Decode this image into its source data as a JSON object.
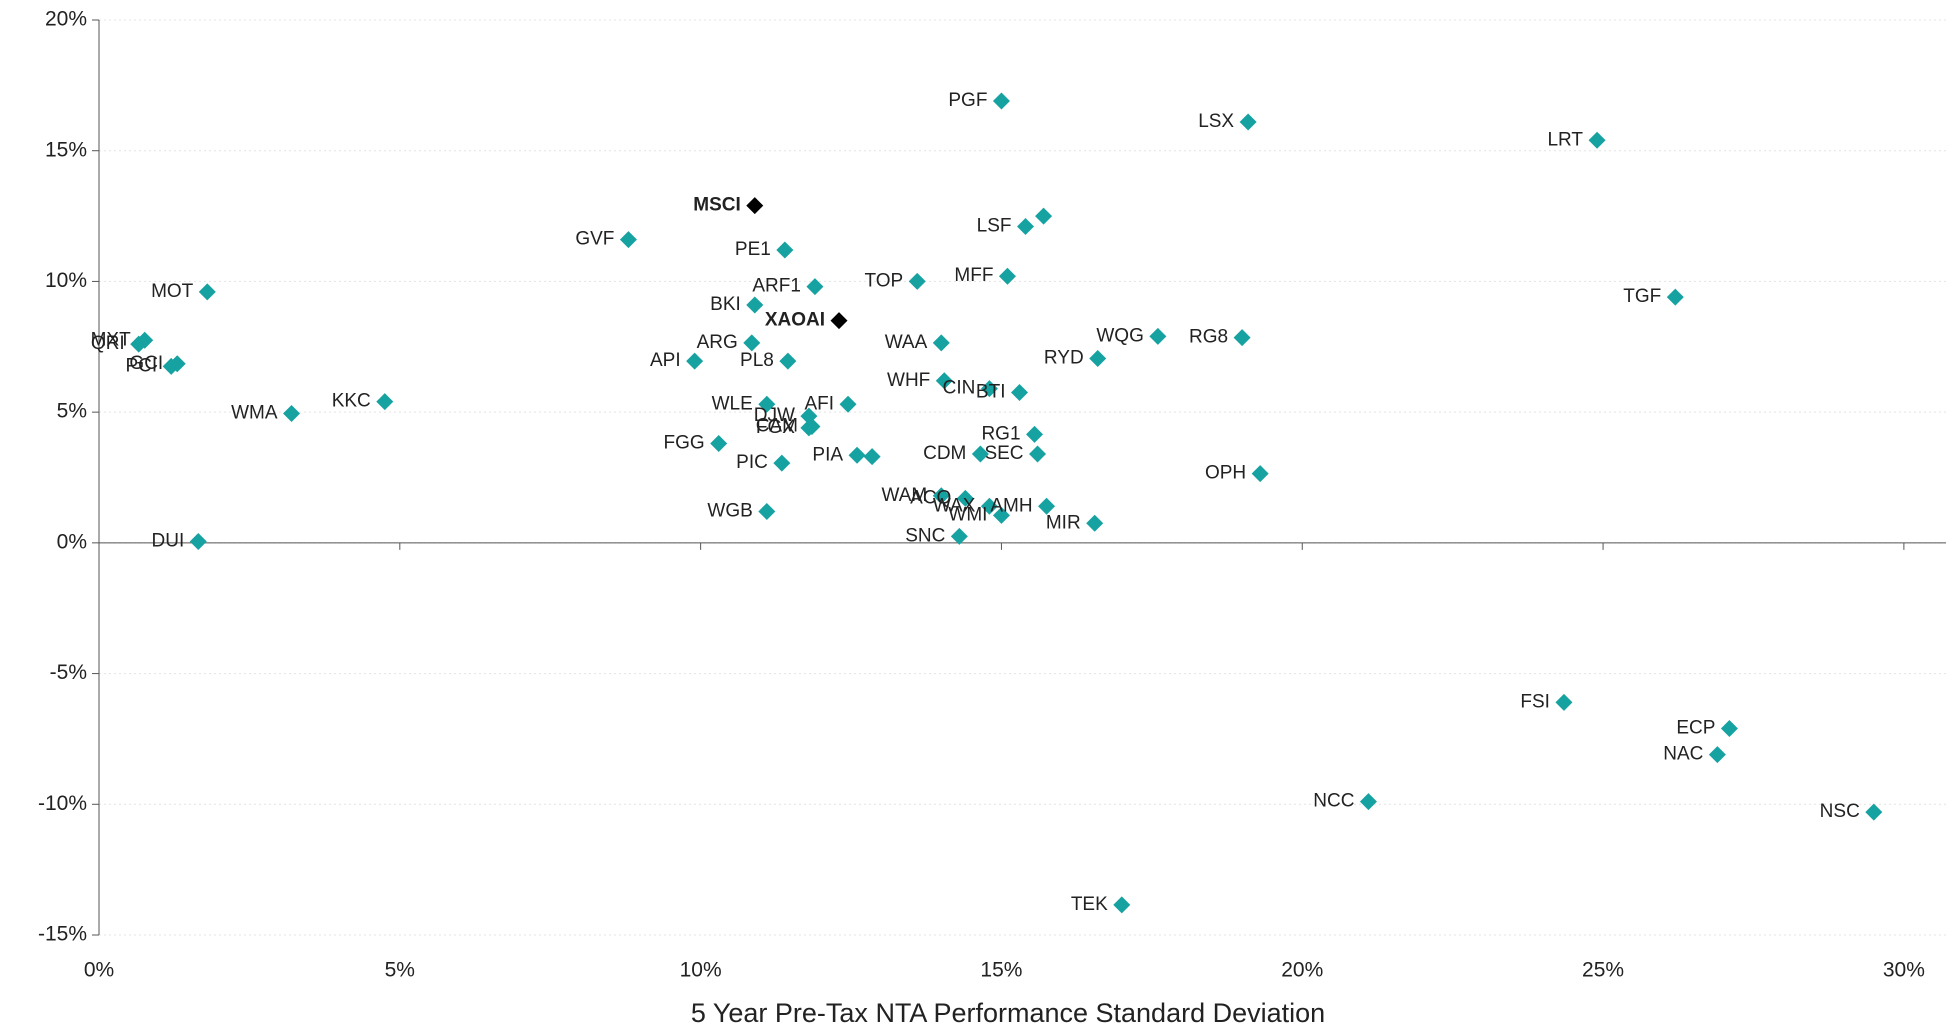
{
  "chart_data": {
    "type": "scatter",
    "xlabel": "5 Year Pre-Tax NTA Performance Standard Deviation",
    "xlim": [
      0,
      30.7
    ],
    "ylim": [
      -15,
      20
    ],
    "xticks": [
      {
        "value": 0,
        "label": "0%"
      },
      {
        "value": 5,
        "label": "5%"
      },
      {
        "value": 10,
        "label": "10%"
      },
      {
        "value": 15,
        "label": "15%"
      },
      {
        "value": 20,
        "label": "20%"
      },
      {
        "value": 25,
        "label": "25%"
      },
      {
        "value": 30,
        "label": "30%"
      }
    ],
    "yticks": [
      {
        "value": -15,
        "label": "-15%"
      },
      {
        "value": -10,
        "label": "-10%"
      },
      {
        "value": -5,
        "label": "-5%"
      },
      {
        "value": 0,
        "label": "0%"
      },
      {
        "value": 5,
        "label": "5%"
      },
      {
        "value": 10,
        "label": "10%"
      },
      {
        "value": 15,
        "label": "15%"
      },
      {
        "value": 20,
        "label": "20%"
      }
    ],
    "grid": true,
    "series": [
      {
        "color": "#17a2a2",
        "labels": [
          "PGF",
          "LSX",
          "LRT",
          "GVF",
          "PE1",
          "LSF",
          null,
          "MFF",
          "TOP",
          "ARF1",
          "MOT",
          "BKI",
          "TGF",
          "QRI",
          "MXT",
          "PCI",
          "GCI",
          "ARG",
          "API",
          "PL8",
          "WAA",
          "WQG",
          "RG8",
          "RYD",
          "WHF",
          "CIN",
          "BTI",
          "KKC",
          "WMA",
          "WLE",
          "AFI",
          "DJW",
          "FGX",
          "CAM",
          "FGG",
          "RG1",
          "SEC",
          "CDM",
          "PIA",
          null,
          "PIC",
          "OPH",
          "WGB",
          "WAM",
          "ACQ",
          "WAX",
          "WMI",
          "AMH",
          "MIR",
          "SNC",
          "DUI",
          "FSI",
          "ECP",
          "NAC",
          "NCC",
          "NSC",
          "TEK"
        ],
        "x": [
          15.0,
          19.1,
          24.9,
          8.8,
          11.4,
          15.4,
          15.7,
          15.1,
          13.6,
          11.9,
          1.8,
          10.9,
          26.2,
          0.66,
          0.76,
          1.2,
          1.3,
          10.85,
          9.9,
          11.45,
          14.0,
          17.6,
          19.0,
          16.6,
          14.05,
          14.8,
          15.3,
          4.75,
          3.2,
          11.1,
          12.45,
          11.8,
          11.8,
          11.85,
          10.3,
          15.55,
          15.6,
          14.65,
          12.6,
          12.85,
          11.35,
          19.3,
          11.1,
          14.0,
          14.4,
          14.8,
          15.0,
          15.75,
          16.55,
          14.3,
          1.65,
          24.35,
          27.1,
          26.9,
          21.1,
          29.5,
          17.0
        ],
        "values": [
          16.9,
          16.1,
          15.4,
          11.6,
          11.2,
          12.1,
          12.5,
          10.2,
          10.0,
          9.8,
          9.6,
          9.1,
          9.4,
          7.6,
          7.75,
          6.75,
          6.85,
          7.65,
          6.95,
          6.95,
          7.65,
          7.9,
          7.85,
          7.05,
          6.2,
          5.9,
          5.75,
          5.4,
          4.95,
          5.3,
          5.3,
          4.85,
          4.4,
          4.45,
          3.8,
          4.15,
          3.4,
          3.4,
          3.35,
          3.3,
          3.05,
          2.65,
          1.2,
          1.8,
          1.7,
          1.4,
          1.05,
          1.4,
          0.75,
          0.25,
          0.05,
          -6.1,
          -7.1,
          -8.1,
          -9.9,
          -10.3,
          -13.85
        ]
      },
      {
        "color": "#000000",
        "bold": true,
        "labels": [
          "MSCI",
          "XAOAI"
        ],
        "x": [
          10.9,
          12.3
        ],
        "values": [
          12.9,
          8.5
        ]
      }
    ]
  }
}
